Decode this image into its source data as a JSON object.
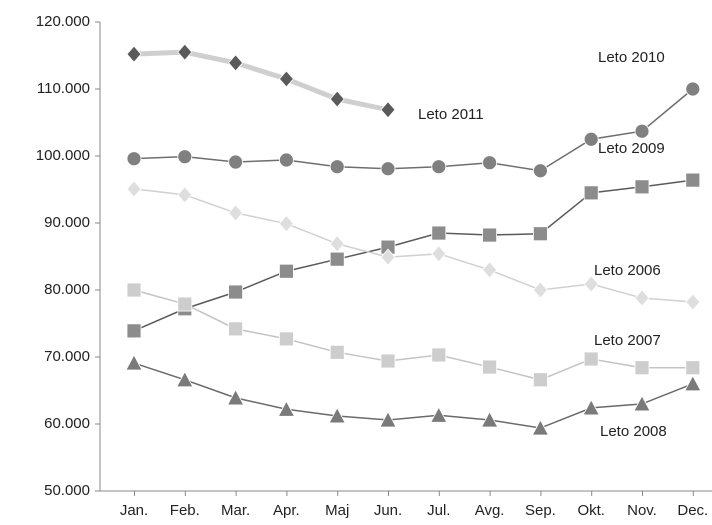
{
  "chart_data": {
    "type": "line",
    "categories": [
      "Jan.",
      "Feb.",
      "Mar.",
      "Apr.",
      "Maj",
      "Jun.",
      "Jul.",
      "Avg.",
      "Sep.",
      "Okt.",
      "Nov.",
      "Dec."
    ],
    "ylim": [
      50000,
      120000
    ],
    "yticks": [
      {
        "value": 50000,
        "label": "50.000"
      },
      {
        "value": 60000,
        "label": "60.000"
      },
      {
        "value": 70000,
        "label": "70.000"
      },
      {
        "value": 80000,
        "label": "80.000"
      },
      {
        "value": 90000,
        "label": "90.000"
      },
      {
        "value": 100000,
        "label": "100.000"
      },
      {
        "value": 110000,
        "label": "110.000"
      },
      {
        "value": 120000,
        "label": "120.000"
      }
    ],
    "series": [
      {
        "name": "Leto 2011",
        "color": "#cfcfcf",
        "marker_color": "#5a5a5a",
        "marker": "diamond",
        "values": [
          115200,
          115500,
          113900,
          111500,
          108500,
          106900,
          null,
          null,
          null,
          null,
          null,
          null
        ]
      },
      {
        "name": "Leto 2010",
        "color": "#6e6e6e",
        "marker_color": "#808080",
        "marker": "circle",
        "values": [
          99600,
          99900,
          99100,
          99400,
          98400,
          98100,
          98400,
          99000,
          97800,
          102500,
          103700,
          110000
        ]
      },
      {
        "name": "Leto 2009",
        "color": "#5a5a5a",
        "marker_color": "#8c8c8c",
        "marker": "square",
        "values": [
          73900,
          77200,
          79700,
          82800,
          84600,
          86400,
          88500,
          88200,
          88400,
          94500,
          95400,
          96400
        ]
      },
      {
        "name": "Leto 2006",
        "color": "#d0d0d0",
        "marker_color": "#dedede",
        "marker": "diamond",
        "values": [
          95100,
          94200,
          91500,
          89900,
          86900,
          84900,
          85400,
          83000,
          80000,
          80900,
          78800,
          78200
        ]
      },
      {
        "name": "Leto 2007",
        "color": "#c4c4c4",
        "marker_color": "#cdcdcd",
        "marker": "square",
        "values": [
          80000,
          77900,
          74200,
          72700,
          70700,
          69400,
          70300,
          68500,
          66600,
          69700,
          68400,
          68400
        ]
      },
      {
        "name": "Leto 2008",
        "color": "#6a6a6a",
        "marker_color": "#7a7a7a",
        "marker": "triangle",
        "values": [
          69100,
          66600,
          63900,
          62200,
          61200,
          60600,
          61300,
          60600,
          59400,
          62400,
          63000,
          66000
        ]
      }
    ]
  }
}
